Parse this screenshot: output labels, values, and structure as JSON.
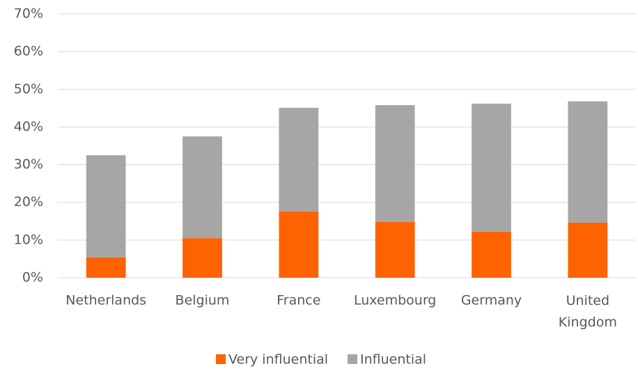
{
  "chart_data": {
    "type": "stacked_bar",
    "categories": [
      "Netherlands",
      "Belgium",
      "France",
      "Luxembourg",
      "Germany",
      "United Kingdom"
    ],
    "series": [
      {
        "name": "Very influential",
        "color": "#ff6200",
        "values": [
          5.4,
          10.5,
          17.6,
          14.8,
          12.2,
          14.6
        ]
      },
      {
        "name": "Influential",
        "color": "#a6a6a6",
        "values": [
          27.1,
          27.0,
          27.5,
          31.0,
          34.0,
          32.2
        ]
      }
    ],
    "ylim": [
      0,
      70
    ],
    "yticks": [
      {
        "value": 0,
        "label": "0%"
      },
      {
        "value": 10,
        "label": "10%"
      },
      {
        "value": 20,
        "label": "20%"
      },
      {
        "value": 30,
        "label": "30%"
      },
      {
        "value": 40,
        "label": "40%"
      },
      {
        "value": 50,
        "label": "50%"
      },
      {
        "value": 60,
        "label": "60%"
      },
      {
        "value": 70,
        "label": "70%"
      }
    ],
    "grid": true,
    "legend": "bottom"
  }
}
